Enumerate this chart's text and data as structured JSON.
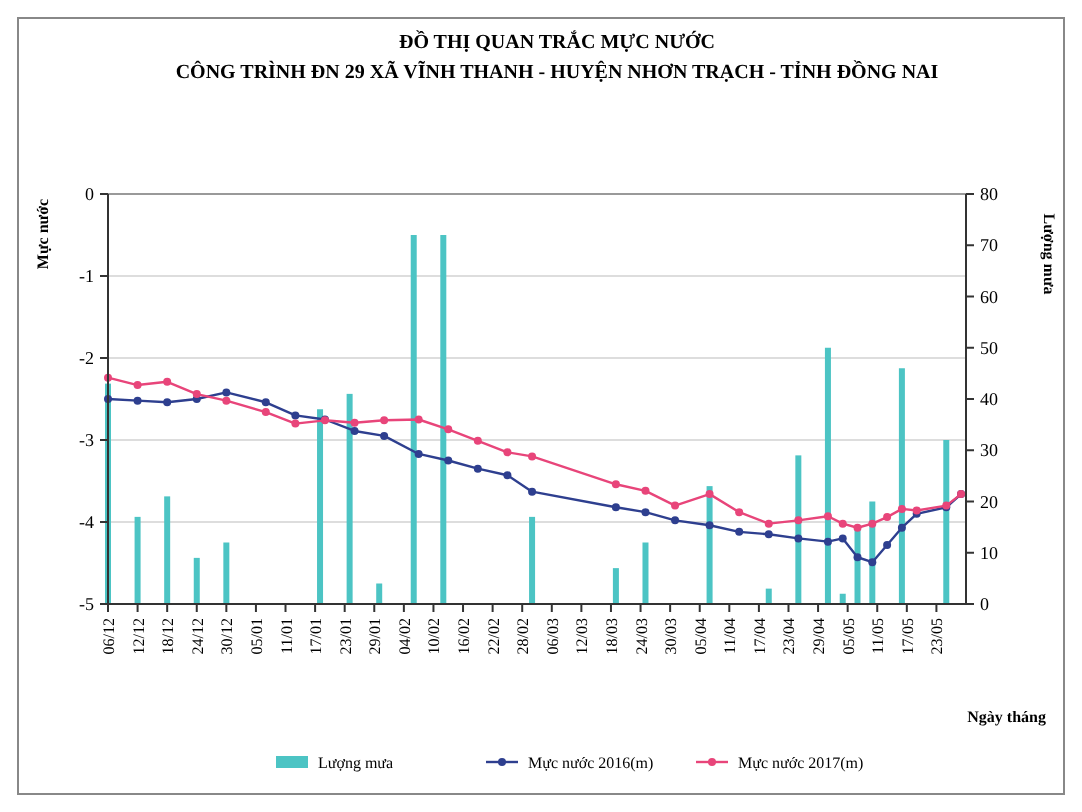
{
  "chart_data": {
    "type": "line",
    "title": "ĐỒ THỊ QUAN TRẮC MỰC NƯỚC",
    "subtitle": "CÔNG TRÌNH ĐN 29 XÃ VĨNH THANH - HUYỆN NHƠN TRẠCH - TỈNH ĐỒNG NAI",
    "xlabel": "Ngày tháng",
    "ylabel": "Mực nước",
    "y2label": "Lượng mưa",
    "xlim": [
      "2016-12-06",
      "2017-05-29"
    ],
    "xticks": [
      {
        "value": "2016-12-06",
        "label": "06/12"
      },
      {
        "value": "2016-12-12",
        "label": "12/12"
      },
      {
        "value": "2016-12-18",
        "label": "18/12"
      },
      {
        "value": "2016-12-24",
        "label": "24/12"
      },
      {
        "value": "2016-12-30",
        "label": "30/12"
      },
      {
        "value": "2017-01-05",
        "label": "05/01"
      },
      {
        "value": "2017-01-11",
        "label": "11/01"
      },
      {
        "value": "2017-01-17",
        "label": "17/01"
      },
      {
        "value": "2017-01-23",
        "label": "23/01"
      },
      {
        "value": "2017-01-29",
        "label": "29/01"
      },
      {
        "value": "2017-02-04",
        "label": "04/02"
      },
      {
        "value": "2017-02-10",
        "label": "10/02"
      },
      {
        "value": "2017-02-16",
        "label": "16/02"
      },
      {
        "value": "2017-02-22",
        "label": "22/02"
      },
      {
        "value": "2017-02-28",
        "label": "28/02"
      },
      {
        "value": "2017-03-06",
        "label": "06/03"
      },
      {
        "value": "2017-03-12",
        "label": "12/03"
      },
      {
        "value": "2017-03-18",
        "label": "18/03"
      },
      {
        "value": "2017-03-24",
        "label": "24/03"
      },
      {
        "value": "2017-03-30",
        "label": "30/03"
      },
      {
        "value": "2017-04-05",
        "label": "05/04"
      },
      {
        "value": "2017-04-11",
        "label": "11/04"
      },
      {
        "value": "2017-04-17",
        "label": "17/04"
      },
      {
        "value": "2017-04-23",
        "label": "23/04"
      },
      {
        "value": "2017-04-29",
        "label": "29/04"
      },
      {
        "value": "2017-05-05",
        "label": "05/05"
      },
      {
        "value": "2017-05-11",
        "label": "11/05"
      },
      {
        "value": "2017-05-17",
        "label": "17/05"
      },
      {
        "value": "2017-05-23",
        "label": "23/05"
      }
    ],
    "ylim": [
      -5,
      0
    ],
    "yticks": [
      -5,
      -4,
      -3,
      -2,
      -1,
      0
    ],
    "y2lim": [
      0,
      80
    ],
    "y2ticks": [
      0,
      10,
      20,
      30,
      40,
      50,
      60,
      70,
      80
    ],
    "grid": "y",
    "legend": "bottom",
    "marker": "circle",
    "series": [
      {
        "name": "Lượng mưa",
        "type": "bar",
        "axis": "y2",
        "color": "#4cc4c4",
        "x": [
          "2016-12-06",
          "2016-12-12",
          "2016-12-18",
          "2016-12-24",
          "2016-12-30",
          "2017-01-18",
          "2017-01-24",
          "2017-01-30",
          "2017-02-06",
          "2017-02-12",
          "2017-03-02",
          "2017-03-19",
          "2017-03-25",
          "2017-04-07",
          "2017-04-19",
          "2017-04-25",
          "2017-05-01",
          "2017-05-04",
          "2017-05-07",
          "2017-05-10",
          "2017-05-16",
          "2017-05-25"
        ],
        "values": [
          43,
          17,
          21,
          9,
          12,
          38,
          41,
          4,
          72,
          72,
          17,
          7,
          12,
          23,
          3,
          29,
          50,
          2,
          15,
          20,
          46,
          32
        ]
      },
      {
        "name": "Mực nước 2016(m)",
        "color": "#2e3f8f",
        "x": [
          "2016-12-06",
          "2016-12-12",
          "2016-12-18",
          "2016-12-24",
          "2016-12-30",
          "2017-01-07",
          "2017-01-13",
          "2017-01-19",
          "2017-01-25",
          "2017-01-31",
          "2017-02-07",
          "2017-02-13",
          "2017-02-19",
          "2017-02-25",
          "2017-03-02",
          "2017-03-19",
          "2017-03-25",
          "2017-03-31",
          "2017-04-07",
          "2017-04-13",
          "2017-04-19",
          "2017-04-25",
          "2017-05-01",
          "2017-05-04",
          "2017-05-07",
          "2017-05-10",
          "2017-05-13",
          "2017-05-16",
          "2017-05-19",
          "2017-05-25",
          "2017-05-28"
        ],
        "values": [
          -2.5,
          -2.52,
          -2.54,
          -2.5,
          -2.42,
          -2.54,
          -2.7,
          -2.75,
          -2.89,
          -2.95,
          -3.17,
          -3.25,
          -3.35,
          -3.43,
          -3.63,
          -3.82,
          -3.88,
          -3.98,
          -4.04,
          -4.12,
          -4.15,
          -4.2,
          -4.24,
          -4.2,
          -4.43,
          -4.49,
          -4.28,
          -4.07,
          -3.9,
          -3.82,
          -3.66
        ]
      },
      {
        "name": "Mực nước 2017(m)",
        "color": "#e8457a",
        "x": [
          "2016-12-06",
          "2016-12-12",
          "2016-12-18",
          "2016-12-24",
          "2016-12-30",
          "2017-01-07",
          "2017-01-13",
          "2017-01-19",
          "2017-01-25",
          "2017-01-31",
          "2017-02-07",
          "2017-02-13",
          "2017-02-19",
          "2017-02-25",
          "2017-03-02",
          "2017-03-19",
          "2017-03-25",
          "2017-03-31",
          "2017-04-07",
          "2017-04-13",
          "2017-04-19",
          "2017-04-25",
          "2017-05-01",
          "2017-05-04",
          "2017-05-07",
          "2017-05-10",
          "2017-05-13",
          "2017-05-16",
          "2017-05-19",
          "2017-05-25",
          "2017-05-28"
        ],
        "values": [
          -2.24,
          -2.33,
          -2.29,
          -2.44,
          -2.52,
          -2.66,
          -2.8,
          -2.76,
          -2.79,
          -2.76,
          -2.75,
          -2.87,
          -3.01,
          -3.15,
          -3.2,
          -3.54,
          -3.62,
          -3.8,
          -3.66,
          -3.88,
          -4.02,
          -3.98,
          -3.93,
          -4.02,
          -4.07,
          -4.02,
          -3.94,
          -3.84,
          -3.86,
          -3.8,
          -3.66
        ]
      }
    ]
  }
}
